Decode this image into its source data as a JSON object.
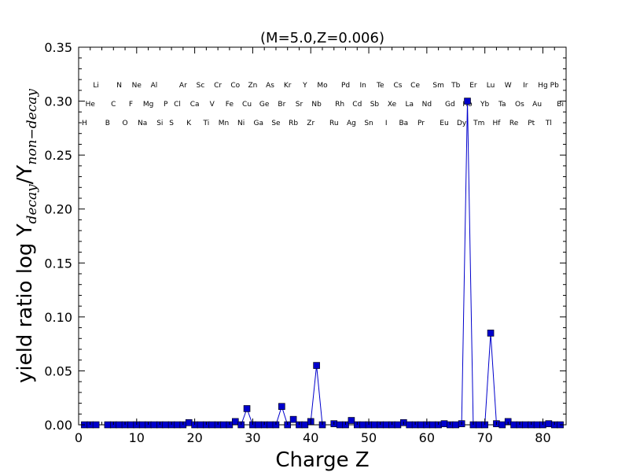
{
  "chart_data": {
    "type": "line",
    "title": "(M=5.0,Z=0.006)",
    "xlabel": "Charge Z",
    "ylabel": {
      "prefix": "yield ratio log Y",
      "sub1": "decay",
      "mid": "/Y",
      "sub2": "non−decay"
    },
    "xlim": [
      0,
      84
    ],
    "ylim": [
      0,
      0.35
    ],
    "xticks": [
      0,
      10,
      20,
      30,
      40,
      50,
      60,
      70,
      80
    ],
    "yticks": [
      0.0,
      0.05,
      0.1,
      0.15,
      0.2,
      0.25,
      0.3,
      0.35
    ],
    "ytick_labels": [
      "0.00",
      "0.05",
      "0.10",
      "0.15",
      "0.20",
      "0.25",
      "0.30",
      "0.35"
    ],
    "grid": false,
    "series": [
      {
        "color": "#0000cc",
        "marker": "square",
        "segments": [
          {
            "x": [
              1,
              2,
              3
            ],
            "y": [
              0,
              0,
              0
            ]
          },
          {
            "x": [
              5,
              6,
              7,
              8,
              9,
              10,
              11,
              12,
              13,
              14,
              15,
              16,
              17,
              18,
              19,
              20,
              21,
              22,
              23,
              24,
              25,
              26,
              27,
              28,
              29,
              30,
              31,
              32,
              33,
              34,
              35,
              36,
              37,
              38,
              39,
              40,
              41,
              42
            ],
            "y": [
              0,
              0,
              0,
              0,
              0,
              0,
              0,
              0,
              0,
              0,
              0,
              0,
              0,
              0,
              0.002,
              0,
              0,
              0,
              0,
              0,
              0,
              0,
              0.003,
              0,
              0.015,
              0,
              0,
              0,
              0,
              0,
              0.017,
              0,
              0.005,
              0,
              0,
              0.003,
              0.055,
              0
            ]
          },
          {
            "x": [
              44,
              45,
              46,
              47,
              48,
              49,
              50,
              51,
              52,
              53,
              54,
              55,
              56,
              57,
              58,
              59,
              60,
              61
            ],
            "y": [
              0.001,
              0,
              0,
              0.004,
              0,
              0,
              0,
              0,
              0,
              0,
              0,
              0,
              0.002,
              0,
              0,
              0,
              0,
              0
            ]
          },
          {
            "x": [
              62,
              63,
              64,
              65,
              66,
              67,
              68,
              69,
              70,
              71,
              72,
              73,
              74,
              75,
              76,
              77,
              78,
              79,
              80,
              81,
              82,
              83
            ],
            "y": [
              0,
              0.001,
              0,
              0,
              0.001,
              0.3,
              0,
              0,
              0,
              0.085,
              0.001,
              0,
              0.003,
              0,
              0,
              0,
              0,
              0,
              0,
              0.001,
              0,
              0
            ]
          }
        ]
      }
    ],
    "element_labels": [
      {
        "z": 1,
        "sym": "H",
        "row": 2
      },
      {
        "z": 2,
        "sym": "He",
        "row": 1
      },
      {
        "z": 3,
        "sym": "Li",
        "row": 0
      },
      {
        "z": 5,
        "sym": "B",
        "row": 2
      },
      {
        "z": 6,
        "sym": "C",
        "row": 1
      },
      {
        "z": 7,
        "sym": "N",
        "row": 0
      },
      {
        "z": 8,
        "sym": "O",
        "row": 2
      },
      {
        "z": 9,
        "sym": "F",
        "row": 1
      },
      {
        "z": 10,
        "sym": "Ne",
        "row": 0
      },
      {
        "z": 11,
        "sym": "Na",
        "row": 2
      },
      {
        "z": 12,
        "sym": "Mg",
        "row": 1
      },
      {
        "z": 13,
        "sym": "Al",
        "row": 0
      },
      {
        "z": 14,
        "sym": "Si",
        "row": 2
      },
      {
        "z": 15,
        "sym": "P",
        "row": 1
      },
      {
        "z": 16,
        "sym": "S",
        "row": 2
      },
      {
        "z": 17,
        "sym": "Cl",
        "row": 1
      },
      {
        "z": 18,
        "sym": "Ar",
        "row": 0
      },
      {
        "z": 19,
        "sym": "K",
        "row": 2
      },
      {
        "z": 20,
        "sym": "Ca",
        "row": 1
      },
      {
        "z": 21,
        "sym": "Sc",
        "row": 0
      },
      {
        "z": 22,
        "sym": "Ti",
        "row": 2
      },
      {
        "z": 23,
        "sym": "V",
        "row": 1
      },
      {
        "z": 24,
        "sym": "Cr",
        "row": 0
      },
      {
        "z": 25,
        "sym": "Mn",
        "row": 2
      },
      {
        "z": 26,
        "sym": "Fe",
        "row": 1
      },
      {
        "z": 27,
        "sym": "Co",
        "row": 0
      },
      {
        "z": 28,
        "sym": "Ni",
        "row": 2
      },
      {
        "z": 29,
        "sym": "Cu",
        "row": 1
      },
      {
        "z": 30,
        "sym": "Zn",
        "row": 0
      },
      {
        "z": 31,
        "sym": "Ga",
        "row": 2
      },
      {
        "z": 32,
        "sym": "Ge",
        "row": 1
      },
      {
        "z": 33,
        "sym": "As",
        "row": 0
      },
      {
        "z": 34,
        "sym": "Se",
        "row": 2
      },
      {
        "z": 35,
        "sym": "Br",
        "row": 1
      },
      {
        "z": 36,
        "sym": "Kr",
        "row": 0
      },
      {
        "z": 37,
        "sym": "Rb",
        "row": 2
      },
      {
        "z": 38,
        "sym": "Sr",
        "row": 1
      },
      {
        "z": 39,
        "sym": "Y",
        "row": 0
      },
      {
        "z": 40,
        "sym": "Zr",
        "row": 2
      },
      {
        "z": 41,
        "sym": "Nb",
        "row": 1
      },
      {
        "z": 42,
        "sym": "Mo",
        "row": 0
      },
      {
        "z": 44,
        "sym": "Ru",
        "row": 2
      },
      {
        "z": 45,
        "sym": "Rh",
        "row": 1
      },
      {
        "z": 46,
        "sym": "Pd",
        "row": 0
      },
      {
        "z": 47,
        "sym": "Ag",
        "row": 2
      },
      {
        "z": 48,
        "sym": "Cd",
        "row": 1
      },
      {
        "z": 49,
        "sym": "In",
        "row": 0
      },
      {
        "z": 50,
        "sym": "Sn",
        "row": 2
      },
      {
        "z": 51,
        "sym": "Sb",
        "row": 1
      },
      {
        "z": 52,
        "sym": "Te",
        "row": 0
      },
      {
        "z": 53,
        "sym": "I",
        "row": 2
      },
      {
        "z": 54,
        "sym": "Xe",
        "row": 1
      },
      {
        "z": 55,
        "sym": "Cs",
        "row": 0
      },
      {
        "z": 56,
        "sym": "Ba",
        "row": 2
      },
      {
        "z": 57,
        "sym": "La",
        "row": 1
      },
      {
        "z": 58,
        "sym": "Ce",
        "row": 0
      },
      {
        "z": 59,
        "sym": "Pr",
        "row": 2
      },
      {
        "z": 60,
        "sym": "Nd",
        "row": 1
      },
      {
        "z": 62,
        "sym": "Sm",
        "row": 0
      },
      {
        "z": 63,
        "sym": "Eu",
        "row": 2
      },
      {
        "z": 64,
        "sym": "Gd",
        "row": 1
      },
      {
        "z": 65,
        "sym": "Tb",
        "row": 0
      },
      {
        "z": 66,
        "sym": "Dy",
        "row": 2
      },
      {
        "z": 67,
        "sym": "Ho",
        "row": 1
      },
      {
        "z": 68,
        "sym": "Er",
        "row": 0
      },
      {
        "z": 69,
        "sym": "Tm",
        "row": 2
      },
      {
        "z": 70,
        "sym": "Yb",
        "row": 1
      },
      {
        "z": 71,
        "sym": "Lu",
        "row": 0
      },
      {
        "z": 72,
        "sym": "Hf",
        "row": 2
      },
      {
        "z": 73,
        "sym": "Ta",
        "row": 1
      },
      {
        "z": 74,
        "sym": "W",
        "row": 0
      },
      {
        "z": 75,
        "sym": "Re",
        "row": 2
      },
      {
        "z": 76,
        "sym": "Os",
        "row": 1
      },
      {
        "z": 77,
        "sym": "Ir",
        "row": 0
      },
      {
        "z": 78,
        "sym": "Pt",
        "row": 2
      },
      {
        "z": 79,
        "sym": "Au",
        "row": 1
      },
      {
        "z": 80,
        "sym": "Hg",
        "row": 0
      },
      {
        "z": 81,
        "sym": "Tl",
        "row": 2
      },
      {
        "z": 82,
        "sym": "Pb",
        "row": 0
      },
      {
        "z": 83,
        "sym": "Bi",
        "row": 1
      }
    ]
  }
}
